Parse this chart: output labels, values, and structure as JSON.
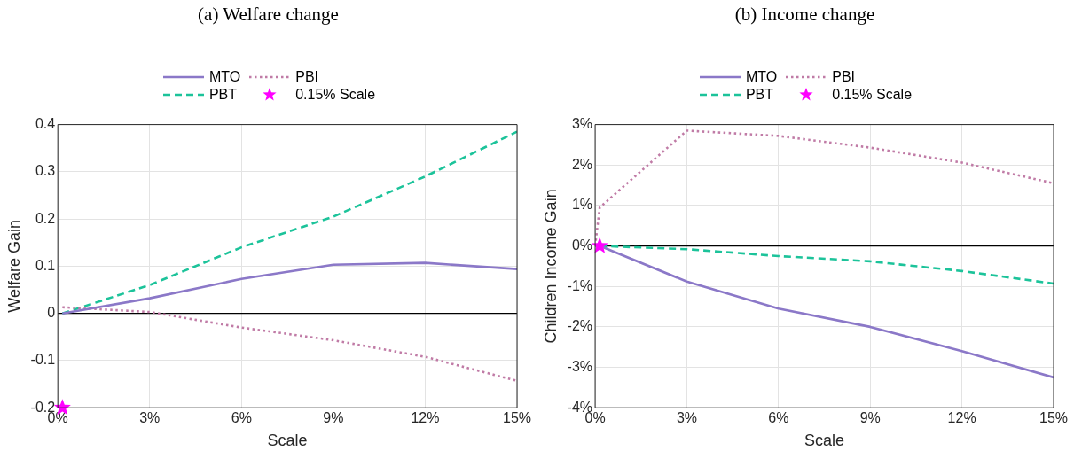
{
  "chart_data": [
    {
      "type": "line",
      "title": "(a) Welfare change",
      "xlabel": "Scale",
      "ylabel": "Welfare Gain",
      "legend": "top",
      "grid": true,
      "xlim": [
        0,
        15
      ],
      "xticks": [
        {
          "value": 0,
          "label": "0%"
        },
        {
          "value": 3,
          "label": "3%"
        },
        {
          "value": 6,
          "label": "6%"
        },
        {
          "value": 9,
          "label": "9%"
        },
        {
          "value": 12,
          "label": "12%"
        },
        {
          "value": 15,
          "label": "15%"
        }
      ],
      "ylim": [
        -0.2,
        0.4
      ],
      "yticks": [
        -0.2,
        -0.1,
        0,
        0.1,
        0.2,
        0.3,
        0.4
      ],
      "ref_lines": [
        {
          "axis": "y",
          "value": 0,
          "color": "#000000"
        }
      ],
      "series": [
        {
          "name": "MTO",
          "type": "line",
          "color": "#8b78c8",
          "line_style": "solid",
          "marker": "none",
          "x": [
            0.15,
            3,
            6,
            9,
            12,
            15
          ],
          "values": [
            0,
            0.032,
            0.073,
            0.103,
            0.107,
            0.094
          ]
        },
        {
          "name": "PBI",
          "type": "line",
          "color": "#c07ba6",
          "line_style": "dotted",
          "marker": "none",
          "x": [
            0.15,
            3,
            6,
            9,
            12,
            15
          ],
          "values": [
            0.013,
            0.003,
            -0.03,
            -0.057,
            -0.092,
            -0.143
          ]
        },
        {
          "name": "PBT",
          "type": "line",
          "color": "#1cc39a",
          "line_style": "dashed",
          "marker": "none",
          "x": [
            0.15,
            3,
            6,
            9,
            12,
            15
          ],
          "values": [
            0,
            0.06,
            0.14,
            0.205,
            0.29,
            0.385
          ]
        },
        {
          "name": "0.15% Scale",
          "type": "scatter",
          "color": "#ff00ff",
          "marker": "star",
          "x": [
            0.15
          ],
          "values": [
            -0.2
          ]
        }
      ]
    },
    {
      "type": "line",
      "title": "(b) Income change",
      "xlabel": "Scale",
      "ylabel": "Children Income Gain",
      "legend": "top",
      "grid": true,
      "xlim": [
        0,
        15
      ],
      "xticks": [
        {
          "value": 0,
          "label": "0%"
        },
        {
          "value": 3,
          "label": "3%"
        },
        {
          "value": 6,
          "label": "6%"
        },
        {
          "value": 9,
          "label": "9%"
        },
        {
          "value": 12,
          "label": "12%"
        },
        {
          "value": 15,
          "label": "15%"
        }
      ],
      "ylim": [
        -4,
        3
      ],
      "yticks": [
        {
          "value": -4,
          "label": "-4%"
        },
        {
          "value": -3,
          "label": "-3%"
        },
        {
          "value": -2,
          "label": "-2%"
        },
        {
          "value": -1,
          "label": "-1%"
        },
        {
          "value": 0,
          "label": "0%"
        },
        {
          "value": 1,
          "label": "1%"
        },
        {
          "value": 2,
          "label": "2%"
        },
        {
          "value": 3,
          "label": "3%"
        }
      ],
      "ref_lines": [
        {
          "axis": "y",
          "value": 0,
          "color": "#000000"
        }
      ],
      "series": [
        {
          "name": "MTO",
          "type": "line",
          "color": "#8b78c8",
          "line_style": "solid",
          "marker": "none",
          "x": [
            0.15,
            3,
            6,
            9,
            12,
            15
          ],
          "values": [
            0,
            -0.88,
            -1.55,
            -2.0,
            -2.6,
            -3.25
          ]
        },
        {
          "name": "PBI",
          "type": "line",
          "color": "#c07ba6",
          "line_style": "dotted",
          "marker": "none",
          "x": [
            0,
            0.15,
            3,
            6,
            9,
            12,
            15
          ],
          "values": [
            0,
            0.95,
            2.85,
            2.72,
            2.43,
            2.06,
            1.55
          ]
        },
        {
          "name": "PBT",
          "type": "line",
          "color": "#1cc39a",
          "line_style": "dashed",
          "marker": "none",
          "x": [
            0.15,
            3,
            6,
            9,
            12,
            15
          ],
          "values": [
            0,
            -0.08,
            -0.25,
            -0.38,
            -0.62,
            -0.93
          ]
        },
        {
          "name": "0.15% Scale",
          "type": "scatter",
          "color": "#ff00ff",
          "marker": "star",
          "x": [
            0.15
          ],
          "values": [
            0
          ]
        }
      ]
    }
  ]
}
